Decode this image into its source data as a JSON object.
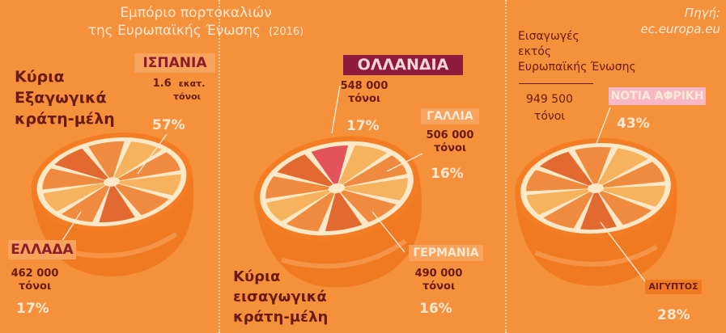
{
  "header": {
    "title_line1": "Εμπόριο πορτοκαλιών",
    "title_line2": "της Ευρωπαϊκής Ένωσης",
    "year": "(2016)",
    "source_label": "Πηγή:",
    "source_value": "ec.europa.eu"
  },
  "exporters": {
    "heading_line1": "Κύρια",
    "heading_line2": "Εξαγωγικά",
    "heading_line3": "κράτη-μέλη",
    "spain": {
      "name": "ΙΣΠΑΝΙΑ",
      "amount": "1.6",
      "unit_word": "εκατ.",
      "unit": "τόνοι",
      "pct": "57%"
    },
    "greece": {
      "name": "ΕΛΛΑΔΑ",
      "amount": "462 000",
      "unit": "τόνοι",
      "pct": "17%"
    }
  },
  "importers": {
    "heading_line1": "Κύρια",
    "heading_line2": "εισαγωγικά",
    "heading_line3": "κράτη-μέλη",
    "netherlands": {
      "name": "ΟΛΛΑΝΔΙΑ",
      "amount": "548 000",
      "unit": "τόνοι",
      "pct": "17%"
    },
    "france": {
      "name": "ΓΑΛΛΙΑ",
      "amount": "506 000",
      "unit": "τόνοι",
      "pct": "16%"
    },
    "germany": {
      "name": "ΓΕΡΜΑΝΙΑ",
      "amount": "490 000",
      "unit": "τόνοι",
      "pct": "16%"
    }
  },
  "external": {
    "heading_line1": "Εισαγωγές",
    "heading_line2": "εκτός",
    "heading_line3": "Ευρωπαϊκής Ένωσης",
    "amount": "949 500",
    "unit": "τόνοι",
    "south_africa": {
      "name": "ΝΟΤΙΑ ΑΦΡΙΚΗ",
      "pct": "43%"
    },
    "egypt": {
      "name": "ΑΙΓΥΠΤΟΣ",
      "pct": "28%"
    }
  },
  "colors": {
    "background": "#f5913a",
    "peel": "#f07a22",
    "pith": "#fde8c8",
    "segment_light": "#f6b25c",
    "segment_mid": "#ef8a3e",
    "segment_dark": "#e26a30",
    "segment_highlight": "#e4535c",
    "netherlands_tag": "#8e1b3d",
    "pink_tag": "#f8b7c5"
  },
  "chart_data": [
    {
      "type": "pie",
      "title": "Κύρια Εξαγωγικά κράτη-μέλη",
      "categories": [
        "ΙΣΠΑΝΙΑ",
        "ΕΛΛΑΔΑ"
      ],
      "values": [
        57,
        17
      ],
      "amounts_tonnes": [
        1600000,
        462000
      ]
    },
    {
      "type": "pie",
      "title": "Κύρια εισαγωγικά κράτη-μέλη",
      "categories": [
        "ΟΛΛΑΝΔΙΑ",
        "ΓΑΛΛΙΑ",
        "ΓΕΡΜΑΝΙΑ"
      ],
      "values": [
        17,
        16,
        16
      ],
      "amounts_tonnes": [
        548000,
        506000,
        490000
      ]
    },
    {
      "type": "pie",
      "title": "Εισαγωγές εκτός Ευρωπαϊκής Ένωσης",
      "categories": [
        "ΝΟΤΙΑ ΑΦΡΙΚΗ",
        "ΑΙΓΥΠΤΟΣ"
      ],
      "values": [
        43,
        28
      ],
      "total_tonnes": 949500
    }
  ]
}
